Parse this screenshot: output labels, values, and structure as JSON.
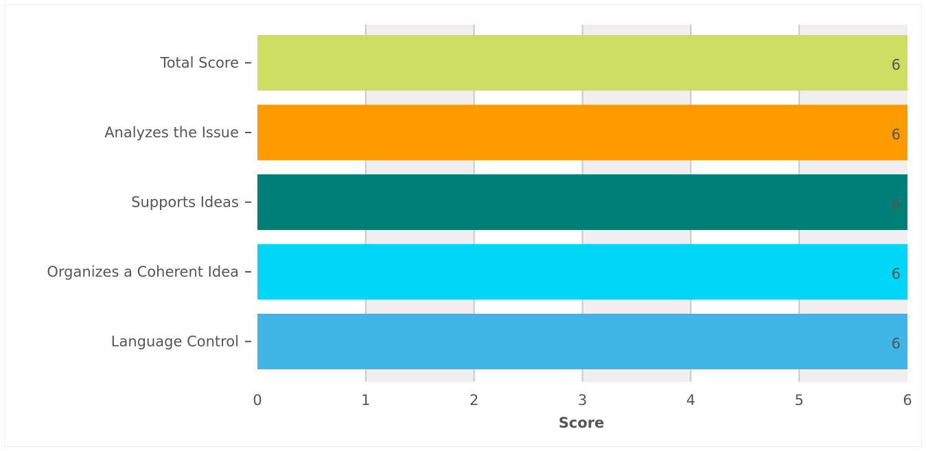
{
  "chart_data": {
    "type": "bar",
    "orientation": "horizontal",
    "categories": [
      "Total Score",
      "Analyzes the Issue",
      "Supports Ideas",
      "Organizes a Coherent Idea",
      "Language Control"
    ],
    "values": [
      6,
      6,
      6,
      6,
      6
    ],
    "colors": [
      "#cddf63",
      "#ff9b00",
      "#007f78",
      "#00d6f7",
      "#3fb6e6"
    ],
    "xlabel": "Score",
    "ylabel": "",
    "xlim": [
      0,
      6
    ],
    "xticks": [
      "0",
      "1",
      "2",
      "3",
      "4",
      "5",
      "6"
    ],
    "data_labels": [
      "6",
      "6",
      "6",
      "6",
      "6"
    ],
    "grid": true,
    "band_color": "#f1eeef",
    "gridline_color": "#c8c8c8",
    "legend": "none"
  }
}
